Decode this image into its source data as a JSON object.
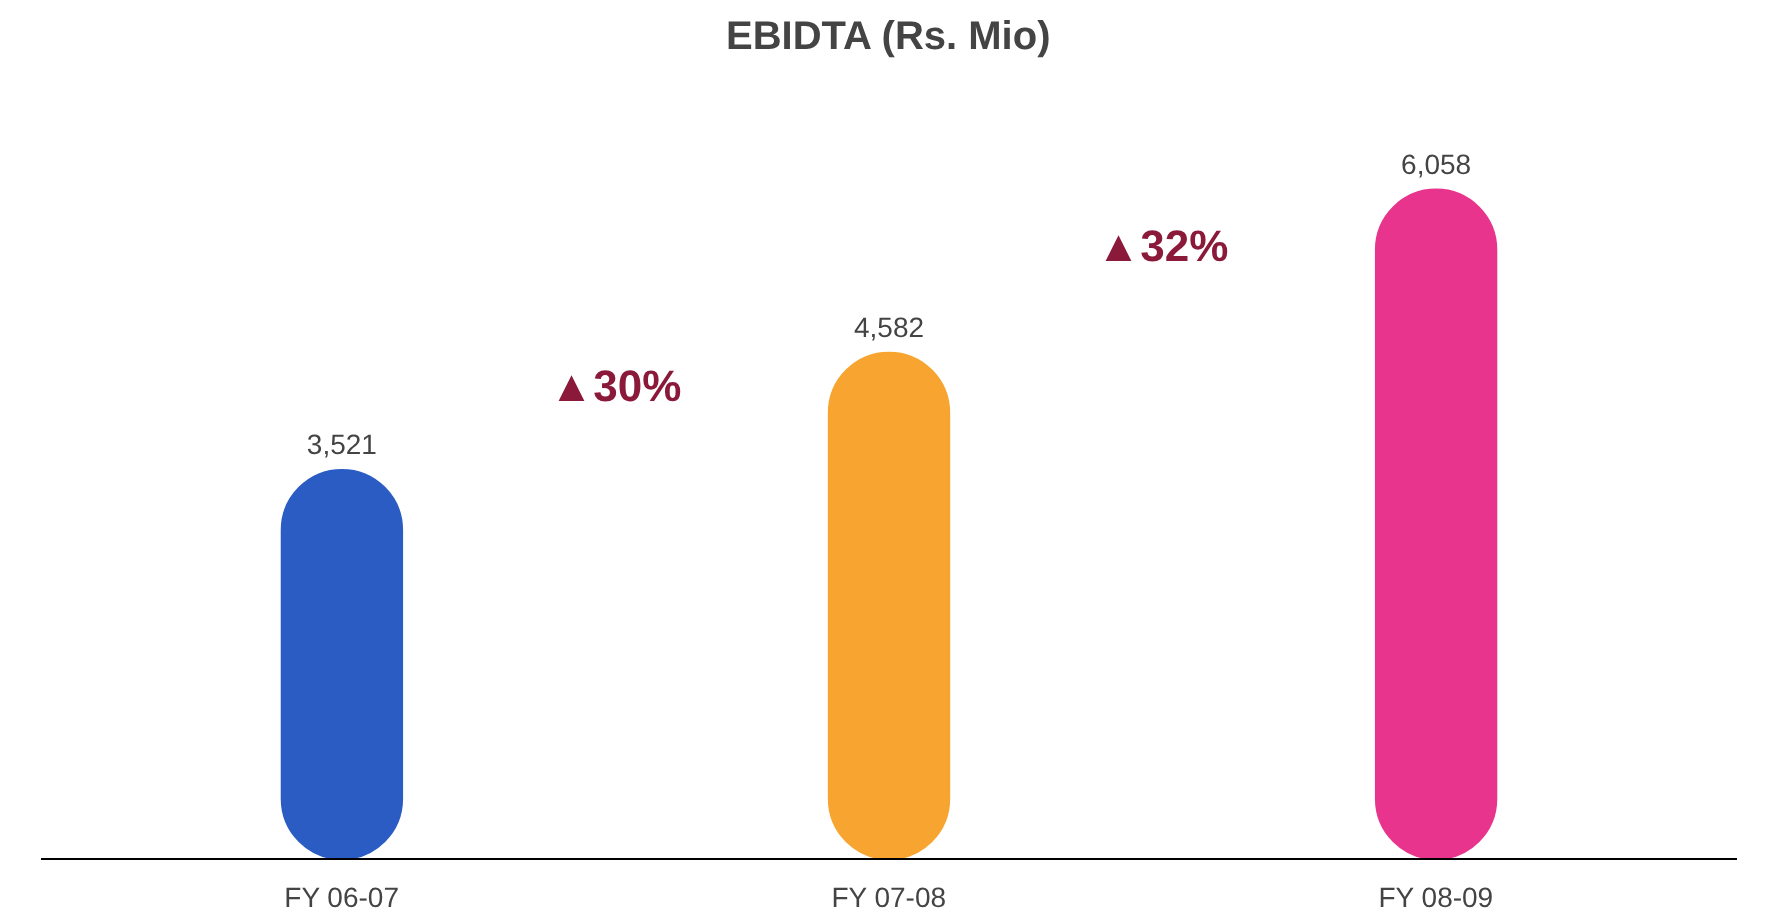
{
  "chart_data": {
    "type": "bar",
    "title": "EBIDTA (Rs. Mio)",
    "categories": [
      "FY 06-07",
      "FY 07-08",
      "FY 08-09"
    ],
    "values": [
      3521,
      4582,
      6058
    ],
    "value_labels": [
      "3,521",
      "4,582",
      "6,058"
    ],
    "colors": [
      "#2a5cc4",
      "#f7a530",
      "#e8348c"
    ],
    "annotations": [
      "▲30%",
      "▲32%"
    ]
  }
}
